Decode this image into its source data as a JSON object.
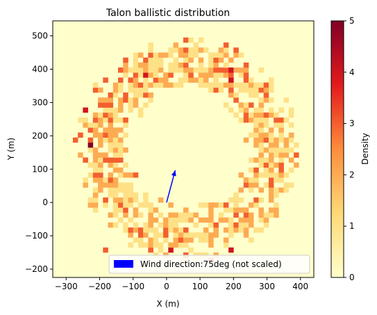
{
  "chart_data": {
    "type": "heatmap",
    "title": "Talon ballistic distribution",
    "xlabel": "X (m)",
    "ylabel": "Y (m)",
    "xlim": [
      -340,
      440
    ],
    "ylim": [
      -225,
      545
    ],
    "xticks": [
      -300,
      -200,
      -100,
      0,
      100,
      200,
      300,
      400
    ],
    "yticks": [
      -200,
      -100,
      0,
      100,
      200,
      300,
      400,
      500
    ],
    "xtick_labels": [
      "−300",
      "−200",
      "−100",
      "0",
      "100",
      "200",
      "300",
      "400"
    ],
    "ytick_labels": [
      "−200",
      "−100",
      "0",
      "100",
      "200",
      "300",
      "400",
      "500"
    ],
    "bin_size_m": 15,
    "colorbar": {
      "label": "Density",
      "range": [
        0,
        5
      ],
      "ticks": [
        "0",
        "1",
        "2",
        "3",
        "4",
        "5"
      ],
      "colormap": "YlOrRd"
    },
    "ring": {
      "center": [
        60,
        160
      ],
      "inner_radius": 195,
      "outer_radius": 300,
      "typical_density": 1,
      "background_density": 0
    },
    "hotspots": [
      {
        "x": -225,
        "y": 180,
        "value": 5
      },
      {
        "x": -240,
        "y": 285,
        "value": 4
      },
      {
        "x": 195,
        "y": 375,
        "value": 4
      },
      {
        "x": 195,
        "y": -140,
        "value": 4
      },
      {
        "x": 20,
        "y": -140,
        "value": 4
      },
      {
        "x": -65,
        "y": 390,
        "value": 4
      },
      {
        "x": 195,
        "y": 400,
        "value": 4
      },
      {
        "x": 350,
        "y": 255,
        "value": 3
      },
      {
        "x": 275,
        "y": 100,
        "value": 3
      },
      {
        "x": 320,
        "y": 60,
        "value": 3
      },
      {
        "x": -140,
        "y": -5,
        "value": 3
      },
      {
        "x": -180,
        "y": 300,
        "value": 3
      },
      {
        "x": 80,
        "y": 390,
        "value": 3
      },
      {
        "x": 155,
        "y": 440,
        "value": 3
      },
      {
        "x": 260,
        "y": 300,
        "value": 3
      },
      {
        "x": -140,
        "y": 405,
        "value": 3
      },
      {
        "x": -120,
        "y": 335,
        "value": 3
      },
      {
        "x": -195,
        "y": 95,
        "value": 3
      },
      {
        "x": -180,
        "y": -130,
        "value": 3
      },
      {
        "x": 45,
        "y": -110,
        "value": 3
      },
      {
        "x": 140,
        "y": -160,
        "value": 3
      }
    ],
    "wind_arrow": {
      "origin": [
        0,
        0
      ],
      "direction_deg": 75,
      "display_length": 100,
      "color": "#0000ff"
    },
    "legend": {
      "label": "Wind direction:75deg (not scaled)",
      "placement": "lower right",
      "swatch_color": "#0000ff"
    }
  }
}
